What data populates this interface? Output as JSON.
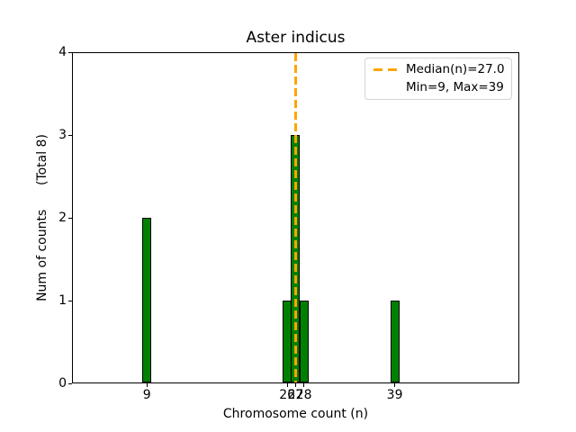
{
  "figure": {
    "title": "Aster indicus"
  },
  "chart_data": {
    "type": "bar",
    "title": "Aster indicus",
    "xlabel": "Chromosome count (n)",
    "ylabel": "Num of counts",
    "ylabel_secondary": "(Total 8)",
    "ylabel_display": "Num of counts      (Total 8)",
    "x": [
      9,
      26,
      27,
      28,
      39
    ],
    "counts": [
      2,
      1,
      3,
      1,
      1
    ],
    "total_counts": 8,
    "xticks": [
      9,
      26,
      27,
      28,
      39
    ],
    "xtick_labels": [
      "9",
      "26",
      "27",
      "28",
      "39"
    ],
    "yticks": [
      0,
      1,
      2,
      3,
      4
    ],
    "ytick_labels": [
      "0",
      "1",
      "2",
      "3",
      "4"
    ],
    "xlim": [
      -0.06,
      54.08
    ],
    "ylim": [
      0,
      4
    ],
    "grid": false,
    "median": 27.0,
    "min": 9,
    "max": 39,
    "bar_color": "#008000",
    "bar_edge_color": "#000000",
    "median_line_color": "#ffa500",
    "legend": {
      "position": "upper right",
      "entries": [
        {
          "label": "Median(n)=27.0",
          "style": "orange-dashed-line"
        },
        {
          "label": "Min=9, Max=39",
          "style": "none"
        }
      ]
    }
  }
}
